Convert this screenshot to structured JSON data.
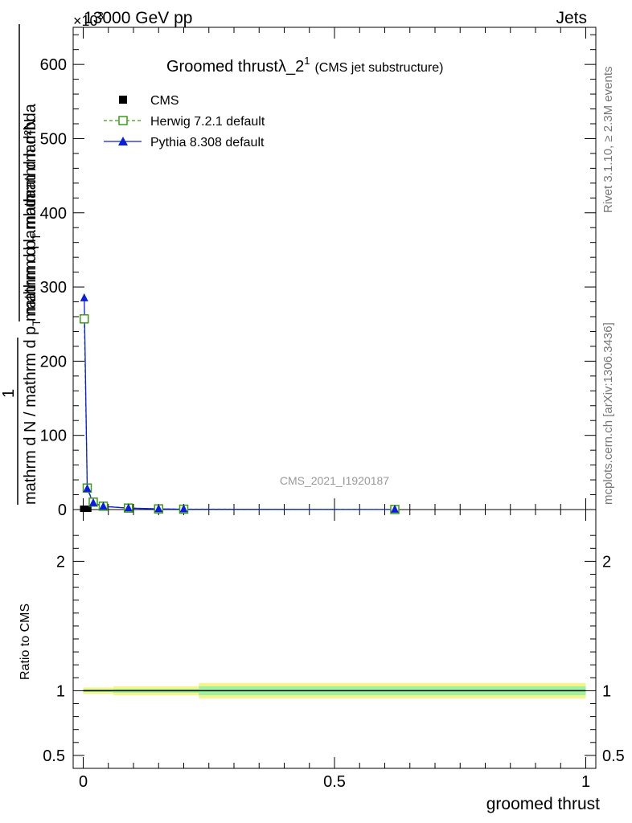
{
  "header": {
    "energy_label": "13000 GeV pp",
    "process_label": "Jets",
    "exponent_label": "×10",
    "exponent_power": "3"
  },
  "side_labels": {
    "rivet": "Rivet 3.1.10, ≥ 2.3M events",
    "mcplots": "mcplots.cern.ch [arXiv:1306.3436]"
  },
  "plot_title": {
    "main": "Groomed thrustλ_2",
    "superscript": "1",
    "sub": "(CMS jet substructure)"
  },
  "analysis_id": "CMS_2021_I1920187",
  "y_axis_main": {
    "label_numerator": "mathrm d²N",
    "label_one": "1",
    "label_den1": "mathrm d p",
    "label_den1_sub": "T",
    "label_den2": " mathrm d lambda",
    "label_den_full": "mathrm d N / mathrm d p",
    "label_den_full_sub": "T",
    "label_den_full_tail": " mathrm d lambda"
  },
  "y_axis_ratio_label": "Ratio to CMS",
  "x_axis_label": "groomed thrust",
  "legend": [
    {
      "name": "CMS",
      "color": "#000000",
      "marker": "filled-square"
    },
    {
      "name": "Herwig 7.2.1 default",
      "color": "#3f9a18",
      "marker": "open-square"
    },
    {
      "name": "Pythia 8.308 default",
      "color": "#0a1fd6",
      "marker": "filled-triangle"
    }
  ],
  "chart_data": {
    "type": "line",
    "title": "Groomed thrust λ_2^1 (CMS jet substructure)",
    "xlabel": "groomed thrust",
    "ylabel": "1/(dN/dpT) d²N/(dpT dλ)",
    "xlim": [
      -0.02,
      1.02
    ],
    "ylim": [
      0,
      650000
    ],
    "yticks": [
      {
        "value": 0,
        "label": "0"
      },
      {
        "value": 100000,
        "label": "100"
      },
      {
        "value": 200000,
        "label": "200"
      },
      {
        "value": 300000,
        "label": "300"
      },
      {
        "value": 400000,
        "label": "400"
      },
      {
        "value": 500000,
        "label": "500"
      },
      {
        "value": 600000,
        "label": "600"
      }
    ],
    "xticks": [
      {
        "value": 0,
        "label": "0"
      },
      {
        "value": 0.5,
        "label": "0.5"
      },
      {
        "value": 1,
        "label": "1"
      }
    ],
    "series": [
      {
        "name": "CMS",
        "x": [
          0.0,
          0.01,
          0.62
        ],
        "y": [
          0,
          0,
          0
        ],
        "color": "#000000"
      },
      {
        "name": "Herwig 7.2.1 default",
        "x": [
          0.002,
          0.008,
          0.02,
          0.04,
          0.09,
          0.15,
          0.2,
          0.62
        ],
        "y": [
          257000,
          29000,
          10000,
          4500,
          2000,
          900,
          500,
          100
        ],
        "color": "#3f9a18"
      },
      {
        "name": "Pythia 8.308 default",
        "x": [
          0.002,
          0.008,
          0.02,
          0.04,
          0.09,
          0.15,
          0.2,
          0.62
        ],
        "y": [
          285000,
          28000,
          9000,
          4200,
          1900,
          850,
          480,
          100
        ],
        "color": "#0a1fd6"
      }
    ],
    "ratio": {
      "ylabel": "Ratio to CMS",
      "yrange": [
        0.4,
        2.4
      ],
      "yticks": [
        {
          "value": 0.5,
          "label": "0.5"
        },
        {
          "value": 1,
          "label": "1"
        },
        {
          "value": 2,
          "label": "2"
        }
      ],
      "bands": [
        {
          "x0": 0.0,
          "x1": 0.06,
          "outer": [
            0.975,
            1.025
          ],
          "inner": [
            0.99,
            1.01
          ]
        },
        {
          "x0": 0.06,
          "x1": 0.23,
          "outer": [
            0.965,
            1.035
          ],
          "inner": [
            0.985,
            1.015
          ]
        },
        {
          "x0": 0.23,
          "x1": 1.0,
          "outer": [
            0.94,
            1.06
          ],
          "inner": [
            0.965,
            1.035
          ]
        }
      ]
    }
  }
}
